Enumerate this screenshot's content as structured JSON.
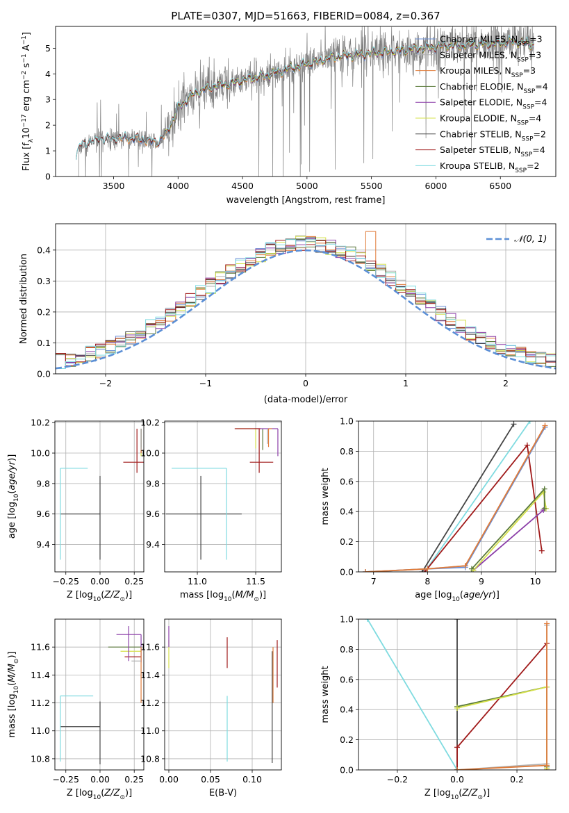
{
  "colors": {
    "Chabrier MILES": "#6b8fd6",
    "Salpeter MILES": "#b0b0b0",
    "Kroupa MILES": "#e07b39",
    "Chabrier ELODIE": "#5a7a3a",
    "Salpeter ELODIE": "#8b3ea8",
    "Kroupa ELODIE": "#d4e04a",
    "Chabrier STELIB": "#444444",
    "Salpeter STELIB": "#a01a1a",
    "Kroupa STELIB": "#7fdbe0",
    "data": "#808080",
    "normal": "#5b8fd6",
    "grid": "#b0b0b0"
  },
  "chart_data": [
    {
      "id": "spectrum",
      "type": "line",
      "title": "PLATE=0307, MJD=51663, FIBERID=0084, z=0.367",
      "xlabel": "wavelength [Angstrom, rest frame]",
      "ylabel": "Flux [f_λ 10^-17 erg cm^-2 s^-1 A^-1]",
      "xlim": [
        3050,
        6930
      ],
      "ylim": [
        0,
        5.85
      ],
      "xticks": [
        3500,
        4000,
        4500,
        5000,
        5500,
        6000,
        6500
      ],
      "yticks": [
        0,
        1,
        2,
        3,
        4,
        5
      ],
      "grid": false,
      "legend_position": "top-right",
      "legend": [
        {
          "label": "Chabrier MILES, N",
          "sub": "SSP",
          "tail": "=3",
          "color_key": "Chabrier MILES"
        },
        {
          "label": "Salpeter MILES, N",
          "sub": "SSP",
          "tail": "=3",
          "color_key": "Salpeter MILES"
        },
        {
          "label": "Kroupa MILES, N",
          "sub": "SSP",
          "tail": "=3",
          "color_key": "Kroupa MILES"
        },
        {
          "label": "Chabrier ELODIE, N",
          "sub": "SSP",
          "tail": "=4",
          "color_key": "Chabrier ELODIE"
        },
        {
          "label": "Salpeter ELODIE, N",
          "sub": "SSP",
          "tail": "=4",
          "color_key": "Salpeter ELODIE"
        },
        {
          "label": "Kroupa ELODIE, N",
          "sub": "SSP",
          "tail": "=4",
          "color_key": "Kroupa ELODIE"
        },
        {
          "label": "Chabrier STELIB, N",
          "sub": "SSP",
          "tail": "=2",
          "color_key": "Chabrier STELIB"
        },
        {
          "label": "Salpeter STELIB, N",
          "sub": "SSP",
          "tail": "=4",
          "color_key": "Salpeter STELIB"
        },
        {
          "label": "Kroupa STELIB, N",
          "sub": "SSP",
          "tail": "=2",
          "color_key": "Kroupa STELIB"
        }
      ],
      "model_continuum": {
        "x": [
          3210,
          3230,
          3300,
          3400,
          3500,
          3600,
          3700,
          3800,
          3850,
          3900,
          3950,
          4000,
          4100,
          4200,
          4300,
          4400,
          4500,
          4600,
          4700,
          4800,
          4900,
          5000,
          5100,
          5200,
          5300,
          5400,
          5500,
          5600,
          5700,
          5800,
          5900,
          6000,
          6100,
          6200,
          6300,
          6400,
          6500,
          6600,
          6700,
          6760
        ],
        "y": [
          0.75,
          1.15,
          1.3,
          1.45,
          1.45,
          1.5,
          1.45,
          1.35,
          1.35,
          1.6,
          2.1,
          2.65,
          3.15,
          3.4,
          3.55,
          3.6,
          3.75,
          3.85,
          3.95,
          4.1,
          4.25,
          4.4,
          4.5,
          4.65,
          4.7,
          4.75,
          4.8,
          4.85,
          4.9,
          4.95,
          5.0,
          5.05,
          5.1,
          5.1,
          5.15,
          5.15,
          5.2,
          5.25,
          5.2,
          5.15
        ]
      },
      "data_range": [
        3210,
        6760
      ]
    },
    {
      "id": "residuals",
      "type": "histogram",
      "xlabel": "(data-model)/error",
      "ylabel": "Normed distribution",
      "xlim": [
        -2.5,
        2.5
      ],
      "ylim": [
        0,
        0.485
      ],
      "xticks": [
        -2,
        -1,
        0,
        1,
        2
      ],
      "yticks": [
        0.0,
        0.1,
        0.2,
        0.3,
        0.4
      ],
      "grid": true,
      "legend_position": "top-right",
      "legend": [
        {
          "label": "𝒩(0, 1)",
          "color_key": "normal"
        }
      ],
      "bins": [
        -2.5,
        2.5,
        50
      ]
    },
    {
      "id": "age-vs-Z",
      "type": "errorbar",
      "xlabel": "Z [log10(Z/Z⊙)]",
      "ylabel": "age [log10(age/yr)]",
      "xlim": [
        -0.33,
        0.32
      ],
      "ylim": [
        9.22,
        10.21
      ],
      "xticks": [
        -0.25,
        0.0,
        0.25
      ],
      "yticks": [
        9.4,
        9.6,
        9.8,
        10.0,
        10.2
      ],
      "grid": true,
      "points": [
        {
          "c": "Chabrier STELIB",
          "x": 0.0,
          "xe": [
            0.29,
            0.0
          ],
          "y": 9.6,
          "ye": [
            0.3,
            0.25
          ]
        },
        {
          "c": "Kroupa STELIB",
          "x": -0.29,
          "xe": [
            0.0,
            0.2
          ],
          "y": 9.9,
          "ye": [
            0.6,
            0.0
          ]
        },
        {
          "c": "Salpeter STELIB",
          "x": 0.27,
          "xe": [
            0.1,
            0.05
          ],
          "y": 9.94,
          "ye": [
            0.07,
            0.22
          ]
        },
        {
          "c": "Kroupa ELODIE",
          "x": 0.3,
          "xe": [
            0.0,
            0.0
          ],
          "y": 10.16,
          "ye": [
            0.18,
            0.0
          ]
        },
        {
          "c": "Chabrier MILES",
          "x": 0.3,
          "xe": [
            0.0,
            0.0
          ],
          "y": 10.16,
          "ye": [
            0.12,
            0.0
          ]
        },
        {
          "c": "Salpeter ELODIE",
          "x": 0.3,
          "xe": [
            0.0,
            0.0
          ],
          "y": 10.16,
          "ye": [
            0.16,
            0.0
          ]
        },
        {
          "c": "Kroupa MILES",
          "x": 0.3,
          "xe": [
            0.0,
            0.0
          ],
          "y": 10.16,
          "ye": [
            0.16,
            0.0
          ]
        },
        {
          "c": "Chabrier ELODIE",
          "x": 0.3,
          "xe": [
            0.0,
            0.0
          ],
          "y": 10.16,
          "ye": [
            0.13,
            0.0
          ]
        },
        {
          "c": "Salpeter MILES",
          "x": 0.3,
          "xe": [
            0.0,
            0.0
          ],
          "y": 10.16,
          "ye": [
            0.14,
            0.0
          ]
        }
      ]
    },
    {
      "id": "age-vs-mass",
      "type": "errorbar",
      "xlabel": "mass [log10(M/M⊙)]",
      "ylabel": "",
      "xlim": [
        10.72,
        11.72
      ],
      "ylim": [
        9.22,
        10.21
      ],
      "xticks": [
        11.0,
        11.5
      ],
      "yticks": [
        9.4,
        9.6,
        9.8,
        10.0,
        10.2
      ],
      "grid": true,
      "points": [
        {
          "c": "Chabrier STELIB",
          "x": 11.03,
          "xe": [
            0.3,
            0.35
          ],
          "y": 9.6,
          "ye": [
            0.3,
            0.25
          ]
        },
        {
          "c": "Kroupa STELIB",
          "x": 11.25,
          "xe": [
            0.47,
            0.0
          ],
          "y": 9.9,
          "ye": [
            0.6,
            0.0
          ]
        },
        {
          "c": "Salpeter STELIB",
          "x": 11.53,
          "xe": [
            0.08,
            0.12
          ],
          "y": 9.94,
          "ye": [
            0.07,
            0.22
          ]
        },
        {
          "c": "Kroupa ELODIE",
          "x": 11.5,
          "xe": [
            0.17,
            0.0
          ],
          "y": 10.16,
          "ye": [
            0.13,
            0.0
          ]
        },
        {
          "c": "Chabrier ELODIE",
          "x": 11.56,
          "xe": [
            0.0,
            0.0
          ],
          "y": 10.16,
          "ye": [
            0.14,
            0.0
          ]
        },
        {
          "c": "Salpeter ELODIE",
          "x": 11.69,
          "xe": [
            0.2,
            0.0
          ],
          "y": 10.16,
          "ye": [
            0.18,
            0.0
          ]
        },
        {
          "c": "Kroupa MILES",
          "x": 11.61,
          "xe": [
            0.0,
            0.03
          ],
          "y": 10.16,
          "ye": [
            0.12,
            0.0
          ]
        },
        {
          "c": "Salpeter MILES",
          "x": 11.6,
          "xe": [
            0.0,
            0.0
          ],
          "y": 10.16,
          "ye": [
            0.1,
            0.0
          ]
        },
        {
          "c": "Salpeter STELIB",
          "x": 11.54,
          "xe": [
            0.22,
            0.0
          ],
          "y": 10.16,
          "ye": [
            0.0,
            0.0
          ]
        }
      ]
    },
    {
      "id": "weight-vs-age",
      "type": "line",
      "xlabel": "age [log10(age/yr)]",
      "ylabel": "mass weight",
      "xlim": [
        6.72,
        10.38
      ],
      "ylim": [
        0,
        1.0
      ],
      "xticks": [
        7,
        8,
        9,
        10
      ],
      "yticks": [
        0.0,
        0.2,
        0.4,
        0.6,
        0.8,
        1.0
      ],
      "grid": true,
      "series": [
        {
          "c": "Chabrier STELIB",
          "x": [
            7.9,
            9.6
          ],
          "y": [
            0.0,
            0.98
          ]
        },
        {
          "c": "Kroupa STELIB",
          "x": [
            7.95,
            9.9
          ],
          "y": [
            0.0,
            1.0
          ]
        },
        {
          "c": "Salpeter STELIB",
          "x": [
            7.95,
            9.85,
            10.12
          ],
          "y": [
            0.0,
            0.84,
            0.14
          ]
        },
        {
          "c": "Salpeter ELODIE",
          "x": [
            8.85,
            10.15
          ],
          "y": [
            0.01,
            0.41
          ]
        },
        {
          "c": "Kroupa ELODIE",
          "x": [
            8.85,
            10.15,
            10.2
          ],
          "y": [
            0.01,
            0.53,
            0.42
          ]
        },
        {
          "c": "Chabrier ELODIE",
          "x": [
            8.82,
            10.17,
            10.17
          ],
          "y": [
            0.02,
            0.55,
            0.42
          ]
        },
        {
          "c": "Salpeter MILES",
          "x": [
            6.85,
            8.0,
            8.7,
            10.18
          ],
          "y": [
            0.0,
            0.02,
            0.04,
            0.96
          ]
        },
        {
          "c": "Chabrier MILES",
          "x": [
            6.85,
            8.0,
            8.7,
            10.18
          ],
          "y": [
            0.0,
            0.02,
            0.03,
            0.96
          ]
        },
        {
          "c": "Kroupa MILES",
          "x": [
            6.85,
            8.0,
            8.7,
            10.18
          ],
          "y": [
            0.0,
            0.02,
            0.04,
            0.97
          ]
        }
      ]
    },
    {
      "id": "mass-vs-Z",
      "type": "errorbar",
      "xlabel": "Z [log10(Z/Z⊙)]",
      "ylabel": "mass [log10(M/M⊙)]",
      "xlim": [
        -0.33,
        0.32
      ],
      "ylim": [
        10.72,
        11.8
      ],
      "xticks": [
        -0.25,
        0.0,
        0.25
      ],
      "yticks": [
        10.8,
        11.0,
        11.2,
        11.4,
        11.6
      ],
      "grid": true,
      "points": [
        {
          "c": "Chabrier STELIB",
          "x": 0.0,
          "xe": [
            0.29,
            0.0
          ],
          "y": 11.03,
          "ye": [
            0.27,
            0.18
          ]
        },
        {
          "c": "Kroupa STELIB",
          "x": -0.29,
          "xe": [
            0.0,
            0.24
          ],
          "y": 11.25,
          "ye": [
            0.47,
            0.0
          ]
        },
        {
          "c": "Salpeter STELIB",
          "x": 0.3,
          "xe": [
            0.12,
            0.0
          ],
          "y": 11.53,
          "ye": [
            0.0,
            0.0
          ]
        },
        {
          "c": "Salpeter ELODIE",
          "x": 0.3,
          "xe": [
            0.18,
            0.0
          ],
          "y": 11.69,
          "ye": [
            0.2,
            0.0
          ]
        },
        {
          "c": "Kroupa ELODIE",
          "x": 0.3,
          "xe": [
            0.15,
            0.0
          ],
          "y": 11.57,
          "ye": [
            0.0,
            0.0
          ]
        },
        {
          "c": "Chabrier ELODIE",
          "x": 0.3,
          "xe": [
            0.24,
            0.0
          ],
          "y": 11.6,
          "ye": [
            0.0,
            0.0
          ]
        },
        {
          "c": "Kroupa MILES",
          "x": 0.3,
          "xe": [
            0.0,
            0.0
          ],
          "y": 11.6,
          "ye": [
            0.4,
            0.0
          ]
        },
        {
          "c": "Salpeter MILES",
          "x": 0.3,
          "xe": [
            0.07,
            0.0
          ],
          "y": 11.5,
          "ye": [
            0.0,
            0.0
          ]
        },
        {
          "c": "Salpeter ELODIE",
          "x": 0.21,
          "xe": [
            0.0,
            0.0
          ],
          "y": 11.6,
          "ye": [
            0.1,
            0.15
          ]
        }
      ]
    },
    {
      "id": "mass-vs-ebv",
      "type": "errorbar",
      "xlabel": "E(B-V)",
      "ylabel": "",
      "xlim": [
        -0.005,
        0.135
      ],
      "ylim": [
        10.72,
        11.8
      ],
      "xticks": [
        0.0,
        0.05,
        0.1
      ],
      "yticks": [
        10.8,
        11.0,
        11.2,
        11.4,
        11.6
      ],
      "grid": true,
      "points": [
        {
          "c": "Kroupa ELODIE",
          "x": 0.0,
          "y": 11.55,
          "ye": [
            0.1,
            0.1
          ]
        },
        {
          "c": "Salpeter ELODIE",
          "x": 0.0,
          "y": 11.65,
          "ye": [
            0.05,
            0.1
          ]
        },
        {
          "c": "Salpeter STELIB",
          "x": 0.07,
          "y": 11.57,
          "ye": [
            0.12,
            0.1
          ]
        },
        {
          "c": "Kroupa STELIB",
          "x": 0.07,
          "y": 11.02,
          "ye": [
            0.24,
            0.23
          ]
        },
        {
          "c": "Chabrier STELIB",
          "x": 0.124,
          "y": 11.17,
          "ye": [
            0.4,
            0.4
          ]
        },
        {
          "c": "Kroupa MILES",
          "x": 0.125,
          "y": 11.4,
          "ye": [
            0.2,
            0.2
          ]
        },
        {
          "c": "Salpeter STELIB",
          "x": 0.13,
          "y": 11.48,
          "ye": [
            0.17,
            0.17
          ]
        }
      ]
    },
    {
      "id": "weight-vs-Z",
      "type": "line",
      "xlabel": "Z [log10(Z/Z⊙)]",
      "ylabel": "mass weight",
      "xlim": [
        -0.33,
        0.33
      ],
      "ylim": [
        0,
        1.0
      ],
      "xticks": [
        -0.2,
        0.0,
        0.2
      ],
      "yticks": [
        0.0,
        0.2,
        0.4,
        0.6,
        0.8,
        1.0
      ],
      "grid": true,
      "series": [
        {
          "c": "Kroupa STELIB",
          "x": [
            -0.3,
            0.0
          ],
          "y": [
            1.0,
            0.0
          ]
        },
        {
          "c": "Chabrier STELIB",
          "x": [
            0.0,
            0.0
          ],
          "y": [
            0.0,
            1.0
          ]
        },
        {
          "c": "Salpeter STELIB",
          "x": [
            0.0,
            0.0,
            0.3,
            0.3
          ],
          "y": [
            0.0,
            0.15,
            0.84,
            0.0
          ]
        },
        {
          "c": "Chabrier ELODIE",
          "x": [
            0.0,
            0.3,
            0.3
          ],
          "y": [
            0.42,
            0.55,
            0.02
          ]
        },
        {
          "c": "Kroupa ELODIE",
          "x": [
            0.0,
            0.3,
            0.3
          ],
          "y": [
            0.41,
            0.55,
            0.01
          ]
        },
        {
          "c": "Salpeter MILES",
          "x": [
            0.0,
            0.3,
            0.3
          ],
          "y": [
            0.0,
            0.04,
            0.96
          ]
        },
        {
          "c": "Kroupa MILES",
          "x": [
            0.0,
            0.3,
            0.3
          ],
          "y": [
            0.0,
            0.03,
            0.97
          ]
        }
      ]
    }
  ]
}
